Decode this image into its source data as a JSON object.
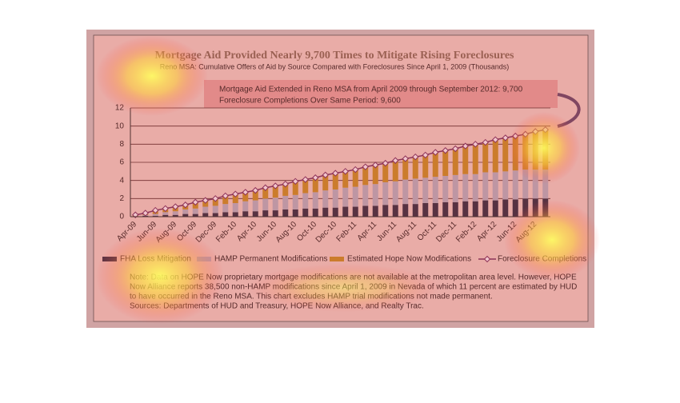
{
  "chart_data": {
    "type": "stacked-bar-line",
    "title": "Mortgage Aid Provided Nearly 9,700 Times to Mitigate Rising Foreclosures",
    "subtitle": "Reno MSA: Cumulative Offers of Aid by Source Compared with Foreclosures Since April 1, 2009  (Thousands)",
    "annotations": [
      "Mortgage Aid Extended in Reno MSA from April 2009 through September 2012: 9,700",
      "Foreclosure Completions Over Same Period: 9,600"
    ],
    "categories": [
      "Apr-09",
      null,
      "Jun-09",
      null,
      "Aug-09",
      null,
      "Oct-09",
      null,
      "Dec-09",
      null,
      "Feb-10",
      null,
      "Apr-10",
      null,
      "Jun-10",
      null,
      "Aug-10",
      null,
      "Oct-10",
      null,
      "Dec-10",
      null,
      "Feb-11",
      null,
      "Apr-11",
      null,
      "Jun-11",
      null,
      "Aug-11",
      null,
      "Oct-11",
      null,
      "Dec-11",
      null,
      "Feb-12",
      null,
      "Apr-12",
      null,
      "Jun-12",
      null,
      "Aug-12",
      null
    ],
    "series": [
      {
        "name": "FHA Loss Mitigation",
        "color": "#3a3346",
        "kind": "bar",
        "values": [
          0.0,
          0.1,
          0.1,
          0.2,
          0.2,
          0.3,
          0.3,
          0.4,
          0.4,
          0.5,
          0.5,
          0.6,
          0.6,
          0.7,
          0.7,
          0.8,
          0.8,
          0.9,
          0.9,
          1.0,
          1.0,
          1.1,
          1.1,
          1.2,
          1.2,
          1.3,
          1.3,
          1.4,
          1.4,
          1.5,
          1.5,
          1.6,
          1.6,
          1.7,
          1.7,
          1.8,
          1.8,
          1.9,
          1.9,
          2.0,
          2.0,
          2.0
        ]
      },
      {
        "name": "HAMP Permanent Modifications",
        "color": "#b3a9b8",
        "kind": "bar",
        "values": [
          0.0,
          0.1,
          0.2,
          0.3,
          0.4,
          0.5,
          0.6,
          0.7,
          0.8,
          0.9,
          1.0,
          1.1,
          1.2,
          1.3,
          1.4,
          1.5,
          1.6,
          1.7,
          1.8,
          1.9,
          2.0,
          2.1,
          2.2,
          2.3,
          2.4,
          2.5,
          2.6,
          2.7,
          2.8,
          2.8,
          2.9,
          2.9,
          3.0,
          3.0,
          3.0,
          3.1,
          3.1,
          3.1,
          3.2,
          3.2,
          3.2,
          3.2
        ]
      },
      {
        "name": "Estimated Hope Now Modifications",
        "color": "#c28a2c",
        "kind": "bar",
        "values": [
          0.2,
          0.2,
          0.4,
          0.4,
          0.5,
          0.5,
          0.7,
          0.7,
          0.8,
          0.9,
          1.0,
          1.0,
          1.1,
          1.2,
          1.3,
          1.3,
          1.5,
          1.5,
          1.6,
          1.7,
          1.8,
          1.8,
          1.9,
          2.0,
          2.1,
          2.1,
          2.3,
          2.3,
          2.4,
          2.5,
          2.7,
          2.8,
          2.9,
          3.1,
          3.3,
          3.3,
          3.6,
          3.7,
          3.8,
          3.9,
          4.2,
          4.5
        ]
      },
      {
        "name": "Foreclosure Completions",
        "color": "#7b3560",
        "kind": "line",
        "values": [
          0.2,
          0.4,
          0.7,
          0.9,
          1.1,
          1.3,
          1.6,
          1.8,
          2.0,
          2.3,
          2.5,
          2.7,
          2.9,
          3.2,
          3.4,
          3.6,
          3.9,
          4.1,
          4.3,
          4.6,
          4.8,
          5.0,
          5.2,
          5.5,
          5.7,
          5.9,
          6.2,
          6.4,
          6.6,
          6.8,
          7.1,
          7.3,
          7.5,
          7.8,
          8.0,
          8.2,
          8.5,
          8.7,
          8.9,
          9.1,
          9.4,
          9.6
        ]
      }
    ],
    "ylim": [
      0,
      12
    ],
    "yticks": [
      0,
      2,
      4,
      6,
      8,
      10,
      12
    ],
    "grid": true,
    "notes": [
      "Note: Data on HOPE Now proprietary mortgage modifications are not available at the metropolitan area level. However, HOPE",
      "Now Alliance reports 38,500 non-HAMP modifications since April 1, 2009 in Nevada of which 11 percent are estimated by HUD",
      "to have occurred in the Reno MSA. This chart excludes HAMP trial modifications not made permanent.",
      "Sources: Departments of HUD and Treasury, HOPE Now Alliance, and Realty Trac."
    ]
  }
}
